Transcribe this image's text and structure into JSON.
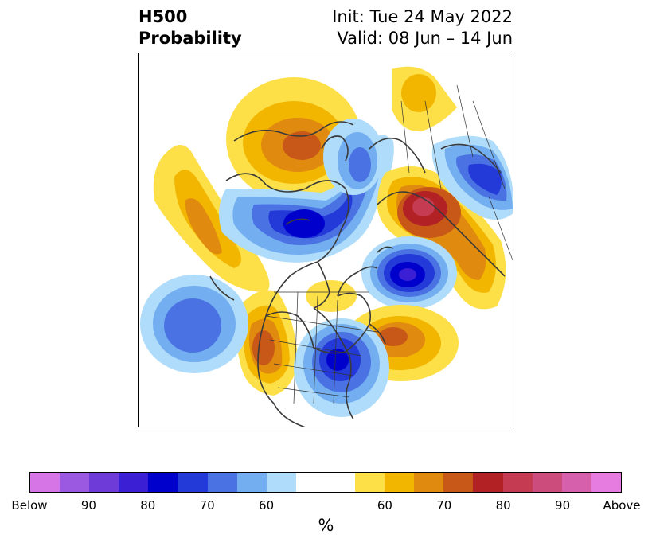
{
  "title": {
    "left_line1": "H500",
    "left_line2": "Probability",
    "right_line1": "Init: Tue 24 May 2022",
    "right_line2": "Valid: 08 Jun – 14 Jun"
  },
  "map": {
    "region": "North America / North Pacific / Arctic",
    "anomalies": [
      {
        "name": "alaska-high",
        "sign": "above",
        "peak_class": 75
      },
      {
        "name": "canada-low",
        "sign": "below",
        "peak_class": 85
      },
      {
        "name": "greenland-low",
        "sign": "below",
        "peak_class": 85
      },
      {
        "name": "siberia-high",
        "sign": "above",
        "peak_class": 85
      },
      {
        "name": "siberia-low",
        "sign": "below",
        "peak_class": 75
      },
      {
        "name": "west-atlantic-high",
        "sign": "above",
        "peak_class": 70
      },
      {
        "name": "east-us-low",
        "sign": "below",
        "peak_class": 80
      },
      {
        "name": "western-us-high",
        "sign": "above",
        "peak_class": 75
      },
      {
        "name": "pacific-high",
        "sign": "above",
        "peak_class": 70
      },
      {
        "name": "subtropical-pacific-low",
        "sign": "below",
        "peak_class": 70
      }
    ]
  },
  "colorbar": {
    "colors": [
      "#d575e6",
      "#9b58e0",
      "#6e3ad8",
      "#3a1fd4",
      "#0000cc",
      "#2339d8",
      "#4a72e3",
      "#73aef0",
      "#aedcfa",
      "#ffffff",
      "#ffffff",
      "#fde048",
      "#f2b600",
      "#e08a10",
      "#c85818",
      "#b22224",
      "#c43b52",
      "#cc4c7c",
      "#d660ac",
      "#e67ce0"
    ],
    "tick_labels": [
      "Below",
      "90",
      "80",
      "70",
      "60",
      "60",
      "70",
      "80",
      "90",
      "Above"
    ],
    "unit_label": "%"
  }
}
